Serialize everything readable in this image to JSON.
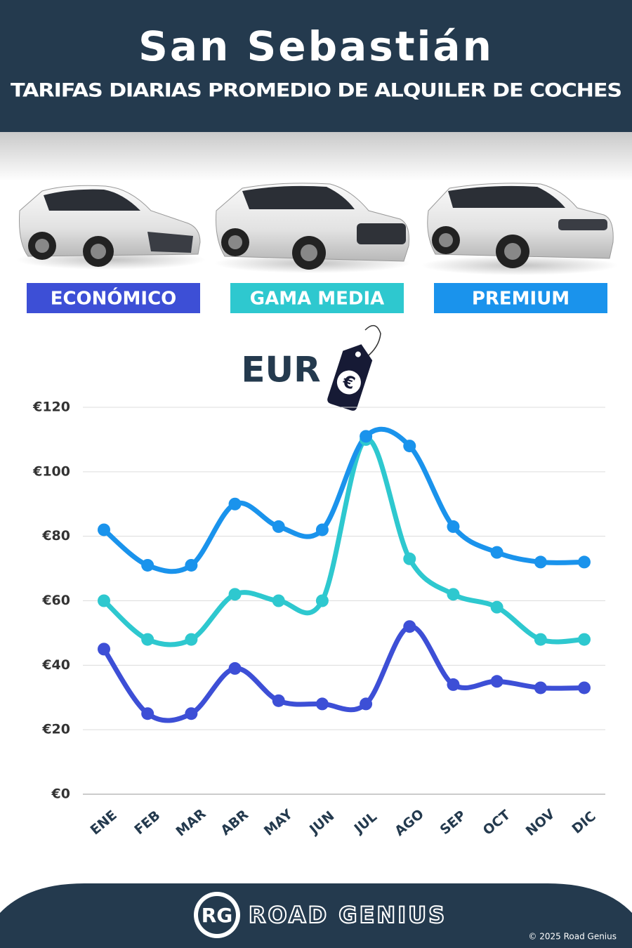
{
  "chart_data": {
    "type": "line",
    "title": "San Sebastián",
    "subtitle": "TARIFAS DIARIAS PROMEDIO DE ALQUILER DE COCHES",
    "currency_label": "EUR",
    "tag_symbol": "€",
    "categories": [
      "ENE",
      "FEB",
      "MAR",
      "ABR",
      "MAY",
      "JUN",
      "JUL",
      "AGO",
      "SEP",
      "OCT",
      "NOV",
      "DIC"
    ],
    "series": [
      {
        "name": "ECONÓMICO",
        "color": "#3d4fd6",
        "values": [
          45,
          25,
          25,
          39,
          29,
          28,
          28,
          52,
          34,
          35,
          33,
          33
        ]
      },
      {
        "name": "GAMA MEDIA",
        "color": "#2ec8cf",
        "values": [
          60,
          48,
          48,
          62,
          60,
          60,
          110,
          73,
          62,
          58,
          48,
          48
        ]
      },
      {
        "name": "PREMIUM",
        "color": "#1a93ec",
        "values": [
          82,
          71,
          71,
          90,
          83,
          82,
          111,
          108,
          83,
          75,
          72,
          72
        ]
      }
    ],
    "ylim": [
      0,
      120
    ],
    "yticks": [
      {
        "value": 0,
        "label": "€0"
      },
      {
        "value": 20,
        "label": "€20"
      },
      {
        "value": 40,
        "label": "€40"
      },
      {
        "value": 60,
        "label": "€60"
      },
      {
        "value": 80,
        "label": "€80"
      },
      {
        "value": 100,
        "label": "€100"
      },
      {
        "value": 120,
        "label": "€120"
      }
    ],
    "grid": true,
    "footer": {
      "logo": "RG",
      "brand": "ROAD GENIUS",
      "copyright": "© 2025 Road Genius"
    }
  }
}
